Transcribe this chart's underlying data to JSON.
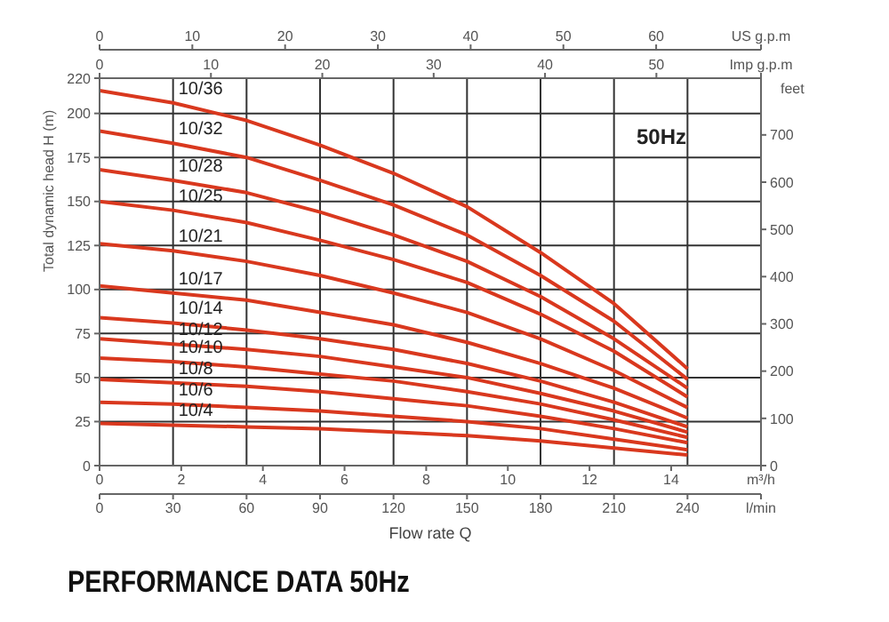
{
  "chart_data": {
    "type": "line",
    "title": "PERFORMANCE DATA 50Hz",
    "annotations": [
      "50Hz",
      "0",
      "10",
      "20",
      "30",
      "40",
      "50",
      "Imp g.p.m",
      "0",
      "2",
      "4",
      "6",
      "8",
      "10",
      "12",
      "14",
      "m³/h"
    ],
    "xlabel": "Flow rate Q",
    "ylabel": "Total dynamic head H (m)",
    "y2label": "feet",
    "x": [
      0,
      30,
      60,
      90,
      120,
      150,
      180,
      210,
      240
    ],
    "xlim": [
      0,
      270
    ],
    "xticks": [
      0,
      30,
      60,
      90,
      120,
      150,
      180,
      210,
      240,
      {
        "value": 270,
        "label": "l/min"
      }
    ],
    "x2lim": [
      0,
      71.3
    ],
    "x2ticks": [
      0,
      10,
      20,
      30,
      40,
      50,
      60,
      {
        "value": 71.3,
        "label": "US g.p.m"
      }
    ],
    "ylim": [
      0,
      220
    ],
    "yticks": [
      0,
      25,
      50,
      75,
      100,
      125,
      150,
      175,
      200,
      220
    ],
    "y2lim": [
      0,
      820
    ],
    "y2ticks": [
      0,
      100,
      200,
      300,
      400,
      500,
      600,
      700
    ],
    "grid": true,
    "legend": false,
    "marker": "none",
    "line_style": "solid",
    "series": [
      {
        "name": "10/36",
        "color": "#d9381e",
        "values": [
          213,
          206,
          196,
          182,
          166,
          147,
          121,
          92,
          55
        ]
      },
      {
        "name": "10/32",
        "color": "#d9381e",
        "values": [
          190,
          183,
          175,
          162,
          148,
          131,
          108,
          82,
          49
        ]
      },
      {
        "name": "10/28",
        "color": "#d9381e",
        "values": [
          168,
          162,
          155,
          144,
          131,
          116,
          96,
          72,
          44
        ]
      },
      {
        "name": "10/25",
        "color": "#d9381e",
        "values": [
          150,
          145,
          138,
          128,
          117,
          104,
          86,
          65,
          39
        ]
      },
      {
        "name": "10/21",
        "color": "#d9381e",
        "values": [
          126,
          122,
          116,
          108,
          98,
          87,
          72,
          54,
          33
        ]
      },
      {
        "name": "10/17",
        "color": "#d9381e",
        "values": [
          102,
          98,
          94,
          87,
          80,
          70,
          58,
          44,
          27
        ]
      },
      {
        "name": "10/14",
        "color": "#d9381e",
        "values": [
          84,
          81,
          77,
          72,
          66,
          58,
          48,
          36,
          22
        ]
      },
      {
        "name": "10/12",
        "color": "#d9381e",
        "values": [
          72,
          69,
          66,
          62,
          56,
          50,
          41,
          31,
          19
        ]
      },
      {
        "name": "10/10",
        "color": "#d9381e",
        "values": [
          61,
          59,
          56,
          52,
          48,
          42,
          35,
          26,
          16
        ]
      },
      {
        "name": "10/8",
        "color": "#d9381e",
        "values": [
          49,
          47,
          45,
          42,
          38,
          34,
          28,
          21,
          13
        ]
      },
      {
        "name": "10/6",
        "color": "#d9381e",
        "values": [
          36,
          35,
          33,
          31,
          28,
          25,
          21,
          15,
          9
        ]
      },
      {
        "name": "10/4",
        "color": "#d9381e",
        "values": [
          24,
          23,
          22,
          21,
          19,
          17,
          14,
          10,
          6
        ]
      }
    ]
  }
}
